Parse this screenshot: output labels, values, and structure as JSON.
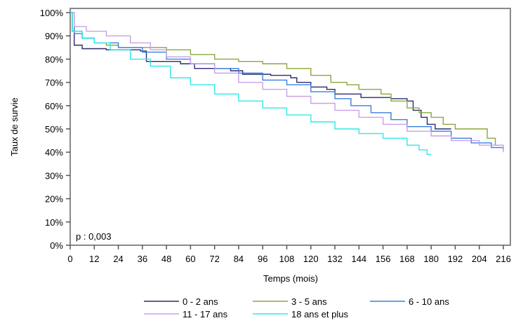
{
  "chart_data": {
    "type": "line",
    "xlabel": "Temps (mois)",
    "ylabel": "Taux de survie",
    "xlim": [
      0,
      216
    ],
    "ylim": [
      0,
      100
    ],
    "xticks": [
      0,
      12,
      24,
      36,
      48,
      60,
      72,
      84,
      96,
      108,
      120,
      132,
      144,
      156,
      168,
      180,
      192,
      204,
      216
    ],
    "yticks": [
      "0%",
      "10%",
      "20%",
      "30%",
      "40%",
      "50%",
      "60%",
      "70%",
      "80%",
      "90%",
      "100%"
    ],
    "annotation": "p : 0,003",
    "grid": false,
    "legend_position": "bottom",
    "series": [
      {
        "name": "0 - 2 ans",
        "color": "#2b2b72",
        "points": [
          [
            0,
            100
          ],
          [
            1,
            92
          ],
          [
            2,
            86
          ],
          [
            6,
            84.5
          ],
          [
            18,
            84
          ],
          [
            35,
            83.5
          ],
          [
            38,
            79
          ],
          [
            55,
            78
          ],
          [
            62,
            76
          ],
          [
            80,
            75
          ],
          [
            86,
            73.5
          ],
          [
            100,
            73
          ],
          [
            110,
            72
          ],
          [
            113,
            70
          ],
          [
            120,
            68
          ],
          [
            128,
            67
          ],
          [
            132,
            65
          ],
          [
            140,
            65
          ],
          [
            145,
            63.5
          ],
          [
            160,
            63
          ],
          [
            168,
            62
          ],
          [
            171,
            58
          ],
          [
            175,
            55
          ],
          [
            178,
            52
          ],
          [
            182,
            50
          ],
          [
            190,
            50
          ]
        ]
      },
      {
        "name": "3 - 5 ans",
        "color": "#8aa83a",
        "points": [
          [
            0,
            100
          ],
          [
            1,
            92
          ],
          [
            6,
            89
          ],
          [
            12,
            87
          ],
          [
            18,
            86
          ],
          [
            24,
            85
          ],
          [
            40,
            85
          ],
          [
            48,
            84
          ],
          [
            60,
            82
          ],
          [
            72,
            80
          ],
          [
            84,
            79
          ],
          [
            96,
            78
          ],
          [
            108,
            76
          ],
          [
            120,
            73
          ],
          [
            130,
            70
          ],
          [
            138,
            69
          ],
          [
            144,
            67
          ],
          [
            155,
            65
          ],
          [
            160,
            62
          ],
          [
            168,
            59
          ],
          [
            174,
            57
          ],
          [
            180,
            55
          ],
          [
            186,
            52
          ],
          [
            192,
            50
          ],
          [
            200,
            50
          ],
          [
            208,
            46
          ],
          [
            212,
            43
          ],
          [
            216,
            43
          ]
        ]
      },
      {
        "name": "6 - 10 ans",
        "color": "#3a7fe0",
        "points": [
          [
            0,
            100
          ],
          [
            2,
            91
          ],
          [
            6,
            89
          ],
          [
            12,
            87
          ],
          [
            24,
            85
          ],
          [
            36,
            83
          ],
          [
            48,
            80
          ],
          [
            60,
            78
          ],
          [
            72,
            76
          ],
          [
            84,
            74
          ],
          [
            96,
            71
          ],
          [
            108,
            69
          ],
          [
            120,
            66
          ],
          [
            132,
            63
          ],
          [
            140,
            60
          ],
          [
            150,
            57
          ],
          [
            160,
            54
          ],
          [
            168,
            51
          ],
          [
            180,
            49
          ],
          [
            190,
            46
          ],
          [
            200,
            44
          ],
          [
            210,
            42
          ],
          [
            216,
            41
          ]
        ]
      },
      {
        "name": "11 - 17 ans",
        "color": "#c9a0e8",
        "points": [
          [
            0,
            100
          ],
          [
            2,
            94
          ],
          [
            8,
            92
          ],
          [
            18,
            90
          ],
          [
            30,
            87
          ],
          [
            40,
            84
          ],
          [
            48,
            81
          ],
          [
            60,
            78
          ],
          [
            72,
            74
          ],
          [
            84,
            70
          ],
          [
            96,
            67
          ],
          [
            108,
            64
          ],
          [
            120,
            61
          ],
          [
            132,
            58
          ],
          [
            144,
            55
          ],
          [
            156,
            52
          ],
          [
            168,
            49
          ],
          [
            180,
            47
          ],
          [
            190,
            45
          ],
          [
            204,
            43
          ],
          [
            216,
            40
          ]
        ]
      },
      {
        "name": "18 ans et plus",
        "color": "#30e8e8",
        "points": [
          [
            0,
            100
          ],
          [
            1,
            92
          ],
          [
            6,
            89
          ],
          [
            12,
            87
          ],
          [
            20,
            84
          ],
          [
            30,
            80
          ],
          [
            40,
            77
          ],
          [
            50,
            72
          ],
          [
            60,
            69
          ],
          [
            72,
            65
          ],
          [
            84,
            62
          ],
          [
            96,
            59
          ],
          [
            108,
            56
          ],
          [
            120,
            53
          ],
          [
            132,
            50
          ],
          [
            144,
            48
          ],
          [
            156,
            46
          ],
          [
            168,
            43
          ],
          [
            174,
            41
          ],
          [
            178,
            39
          ],
          [
            180,
            39
          ]
        ]
      }
    ]
  }
}
